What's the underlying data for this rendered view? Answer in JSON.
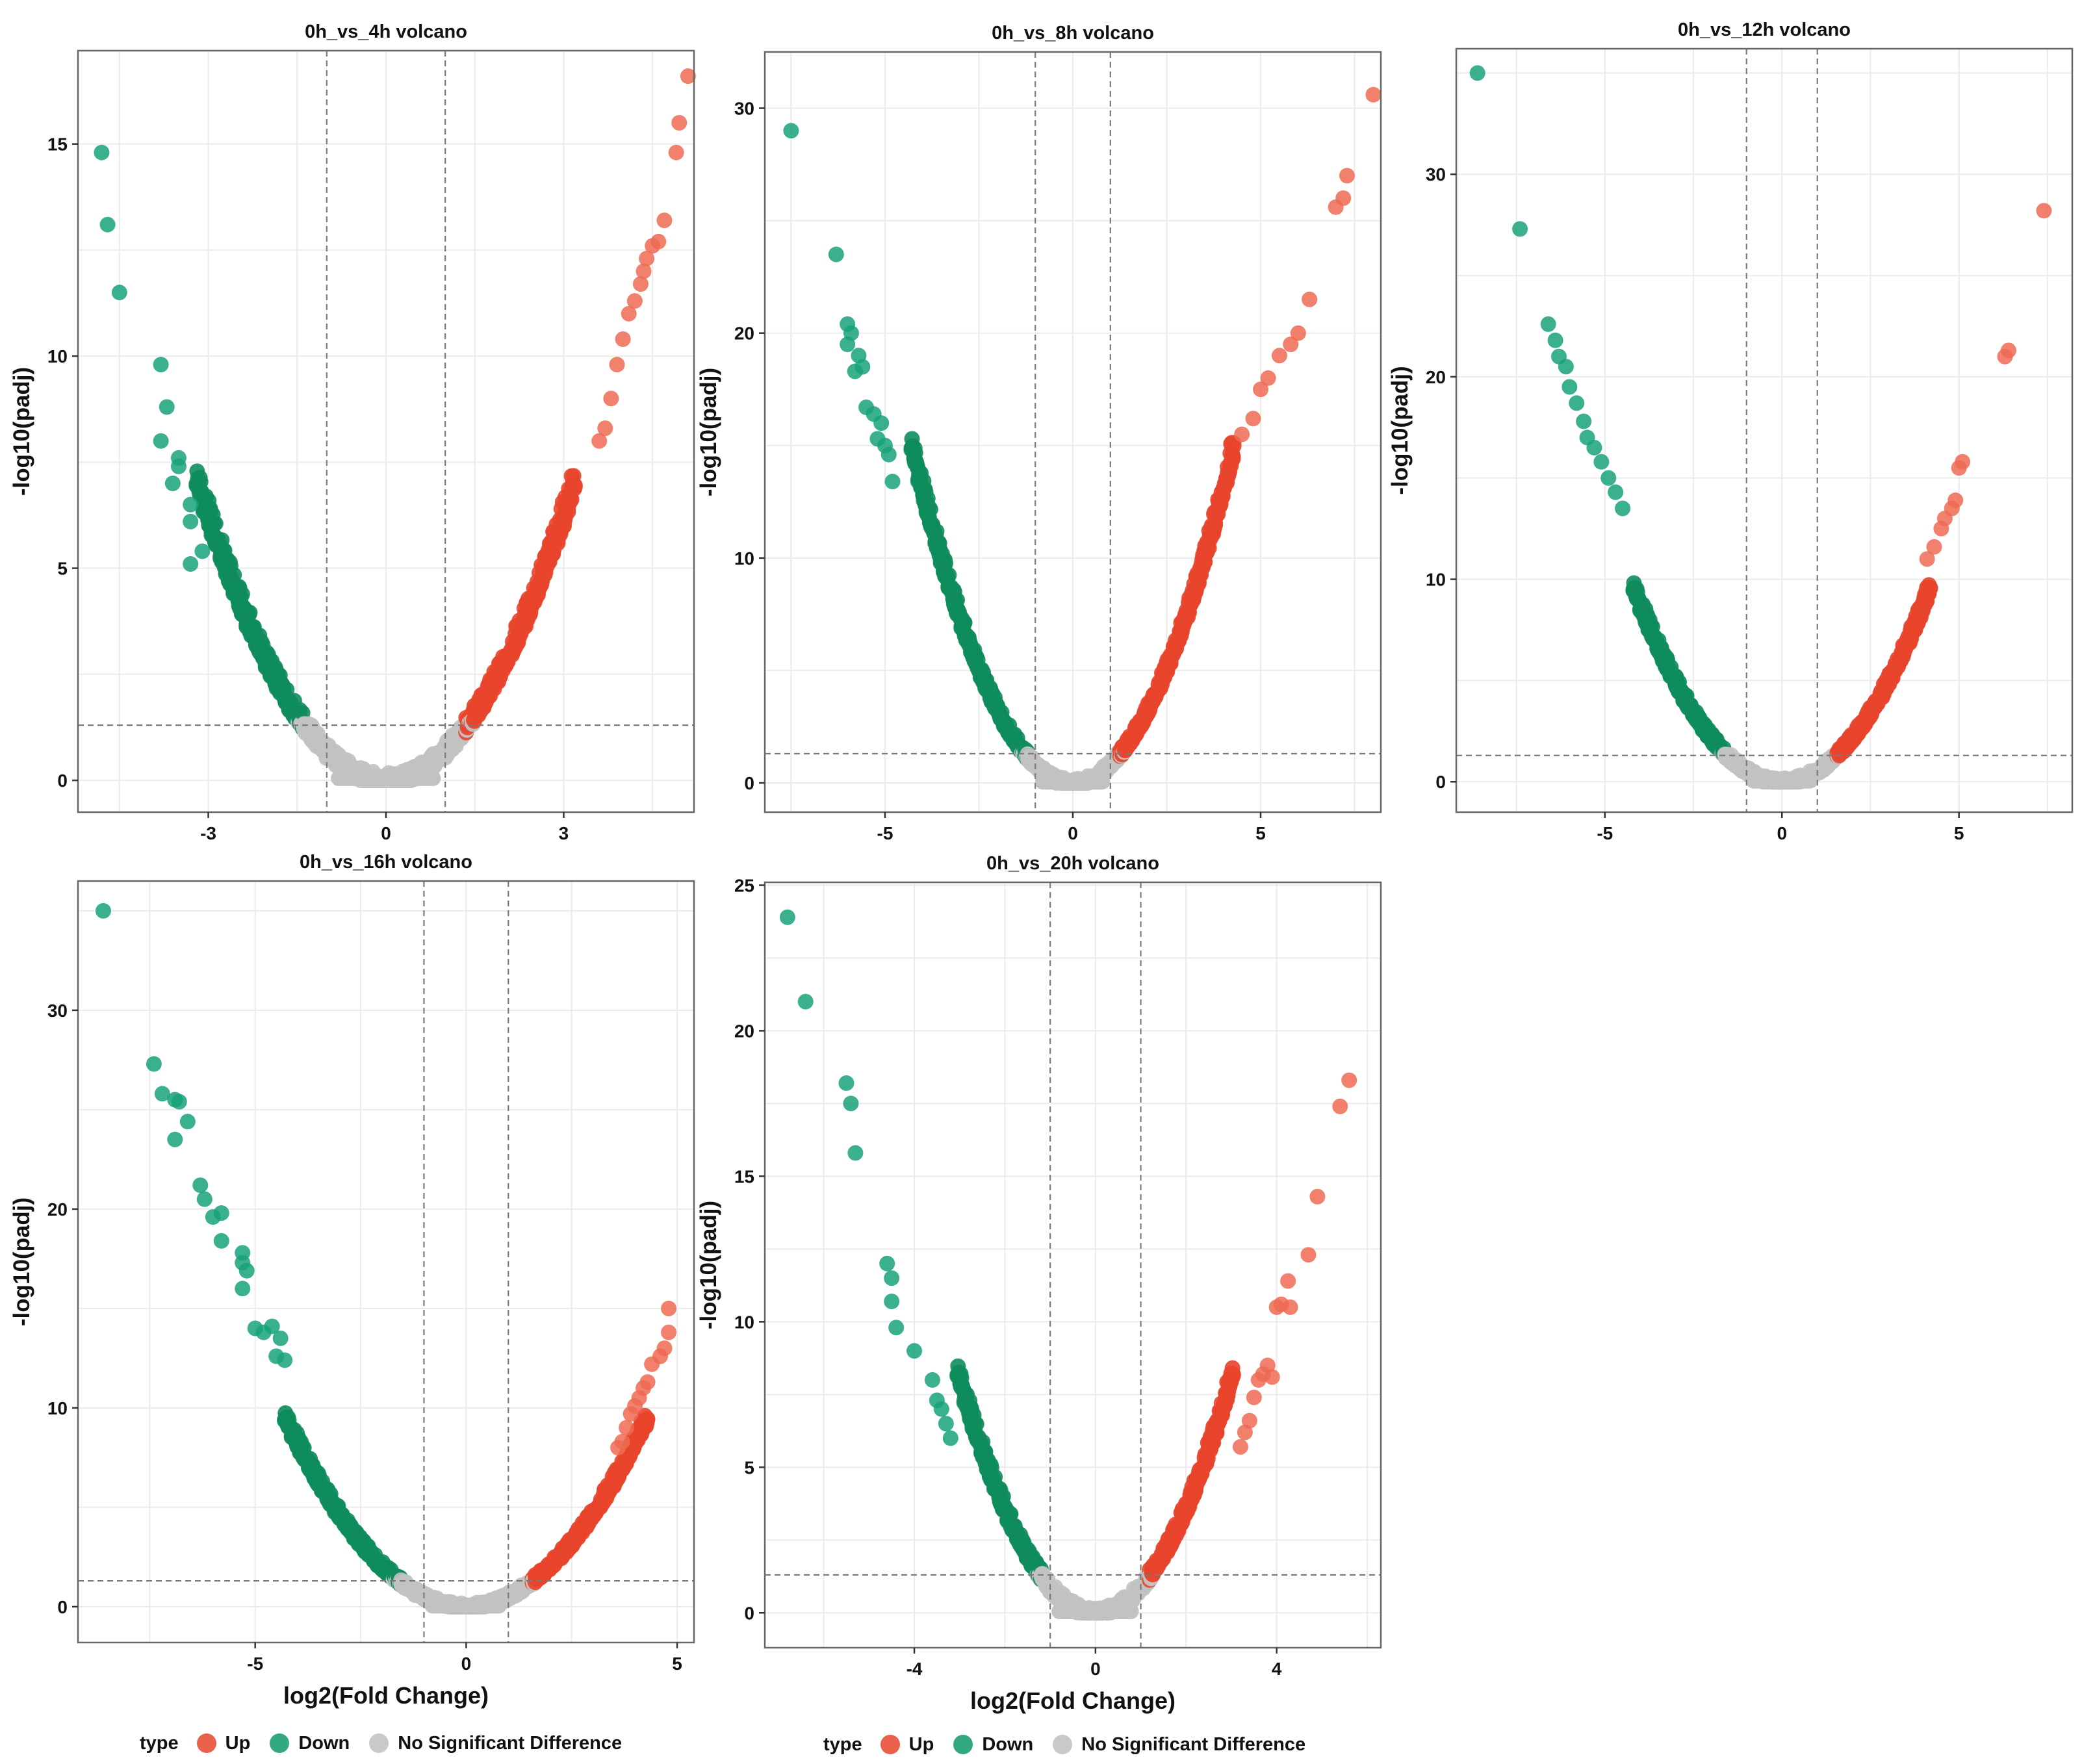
{
  "legend": {
    "title": "type",
    "items": [
      {
        "label": "Up",
        "color": "#E8452C"
      },
      {
        "label": "Down",
        "color": "#0F9A6A"
      },
      {
        "label": "No Significant Difference",
        "color": "#C0C0C0"
      }
    ]
  },
  "chart_data": [
    {
      "type": "scatter",
      "title": "0h_vs_4h volcano",
      "xlabel": "",
      "ylabel": "-log10(padj)",
      "xlim": [
        -5.2,
        5.2
      ],
      "ylim": [
        -0.75,
        17.2
      ],
      "xticks": [
        -3,
        0,
        3
      ],
      "yticks": [
        0,
        5,
        10,
        15
      ],
      "fc_threshold": 1,
      "padj_threshold_line": 1.3,
      "curve_k": 0.7,
      "grey_xmax": 1.65,
      "curve_xmax": 3.2,
      "up_points": [
        [
          3.6,
          8.0
        ],
        [
          3.7,
          8.3
        ],
        [
          3.8,
          9.0
        ],
        [
          3.9,
          9.8
        ],
        [
          4.0,
          10.4
        ],
        [
          4.1,
          11.0
        ],
        [
          4.2,
          11.3
        ],
        [
          4.3,
          11.7
        ],
        [
          4.35,
          12.0
        ],
        [
          4.4,
          12.3
        ],
        [
          4.5,
          12.6
        ],
        [
          4.6,
          12.7
        ],
        [
          4.7,
          13.2
        ],
        [
          4.9,
          14.8
        ],
        [
          4.95,
          15.5
        ],
        [
          5.1,
          16.6
        ]
      ],
      "down_points": [
        [
          -4.8,
          14.8
        ],
        [
          -4.7,
          13.1
        ],
        [
          -4.5,
          11.5
        ],
        [
          -3.8,
          9.8
        ],
        [
          -3.7,
          8.8
        ],
        [
          -3.8,
          8.0
        ],
        [
          -3.5,
          7.6
        ],
        [
          -3.5,
          7.4
        ],
        [
          -3.6,
          7.0
        ],
        [
          -3.3,
          6.5
        ],
        [
          -3.3,
          6.1
        ],
        [
          -3.3,
          5.1
        ],
        [
          -3.1,
          5.4
        ]
      ]
    },
    {
      "type": "scatter",
      "title": "0h_vs_8h volcano",
      "xlabel": "",
      "ylabel": "-log10(padj)",
      "xlim": [
        -8.2,
        8.2
      ],
      "ylim": [
        -1.3,
        32.5
      ],
      "xticks": [
        -5,
        0,
        5
      ],
      "yticks": [
        0,
        10,
        20,
        30
      ],
      "fc_threshold": 1,
      "padj_threshold_line": 1.3,
      "curve_k": 0.82,
      "grey_xmax": 1.6,
      "curve_xmax": 4.3,
      "up_points": [
        [
          4.5,
          15.5
        ],
        [
          4.8,
          16.2
        ],
        [
          5.0,
          17.5
        ],
        [
          5.2,
          18.0
        ],
        [
          5.5,
          19.0
        ],
        [
          5.8,
          19.5
        ],
        [
          6.0,
          20.0
        ],
        [
          6.3,
          21.5
        ],
        [
          7.0,
          25.6
        ],
        [
          7.2,
          26.0
        ],
        [
          7.3,
          27.0
        ],
        [
          8.0,
          30.6
        ]
      ],
      "down_points": [
        [
          -7.5,
          29.0
        ],
        [
          -6.3,
          23.5
        ],
        [
          -6.0,
          20.4
        ],
        [
          -5.9,
          20.0
        ],
        [
          -6.0,
          19.5
        ],
        [
          -5.7,
          19.0
        ],
        [
          -5.6,
          18.5
        ],
        [
          -5.8,
          18.3
        ],
        [
          -5.5,
          16.7
        ],
        [
          -5.3,
          16.4
        ],
        [
          -5.1,
          16.0
        ],
        [
          -5.2,
          15.3
        ],
        [
          -5.0,
          15.0
        ],
        [
          -4.9,
          14.6
        ],
        [
          -4.8,
          13.4
        ]
      ]
    },
    {
      "type": "scatter",
      "title": "0h_vs_12h volcano",
      "xlabel": "",
      "ylabel": "-log10(padj)",
      "xlim": [
        -9.2,
        8.2
      ],
      "ylim": [
        -1.5,
        36.2
      ],
      "xticks": [
        -5,
        0,
        5
      ],
      "yticks": [
        0,
        10,
        20,
        30
      ],
      "fc_threshold": 1,
      "padj_threshold_line": 1.3,
      "curve_k": 0.55,
      "grey_xmax": 1.8,
      "curve_xmax": 4.2,
      "up_points": [
        [
          4.1,
          11.0
        ],
        [
          4.3,
          11.6
        ],
        [
          4.5,
          12.5
        ],
        [
          4.6,
          13.0
        ],
        [
          4.8,
          13.5
        ],
        [
          4.9,
          13.9
        ],
        [
          5.0,
          15.5
        ],
        [
          5.1,
          15.8
        ],
        [
          6.3,
          21.0
        ],
        [
          6.4,
          21.3
        ],
        [
          7.4,
          28.2
        ]
      ],
      "down_points": [
        [
          -8.6,
          35.0
        ],
        [
          -7.4,
          27.3
        ],
        [
          -6.6,
          22.6
        ],
        [
          -6.4,
          21.8
        ],
        [
          -6.3,
          21.0
        ],
        [
          -6.1,
          20.5
        ],
        [
          -6.0,
          19.5
        ],
        [
          -5.8,
          18.7
        ],
        [
          -5.6,
          17.8
        ],
        [
          -5.5,
          17.0
        ],
        [
          -5.3,
          16.5
        ],
        [
          -5.1,
          15.8
        ],
        [
          -4.9,
          15.0
        ],
        [
          -4.7,
          14.3
        ],
        [
          -4.5,
          13.5
        ]
      ]
    },
    {
      "type": "scatter",
      "title": "0h_vs_16h volcano",
      "xlabel": "log2(Fold Change)",
      "ylabel": "-log10(padj)",
      "xlim": [
        -9.2,
        5.4
      ],
      "ylim": [
        -1.8,
        36.5
      ],
      "xticks": [
        -5,
        0,
        5
      ],
      "yticks": [
        0,
        10,
        20,
        30
      ],
      "fc_threshold": 1,
      "padj_threshold_line": 1.3,
      "curve_k": 0.52,
      "grey_xmax": 1.75,
      "curve_xmax": 4.3,
      "up_points": [
        [
          3.6,
          8.0
        ],
        [
          3.7,
          8.3
        ],
        [
          3.8,
          9.0
        ],
        [
          3.9,
          9.7
        ],
        [
          4.0,
          10.1
        ],
        [
          4.1,
          10.5
        ],
        [
          4.2,
          11.0
        ],
        [
          4.3,
          11.3
        ],
        [
          4.4,
          12.2
        ],
        [
          4.6,
          12.6
        ],
        [
          4.7,
          13.0
        ],
        [
          4.8,
          13.8
        ],
        [
          4.8,
          15.0
        ]
      ],
      "down_points": [
        [
          -8.6,
          35.0
        ],
        [
          -7.4,
          27.3
        ],
        [
          -7.2,
          25.8
        ],
        [
          -6.9,
          25.5
        ],
        [
          -6.8,
          25.4
        ],
        [
          -6.6,
          24.4
        ],
        [
          -6.9,
          23.5
        ],
        [
          -6.3,
          21.2
        ],
        [
          -6.2,
          20.5
        ],
        [
          -6.0,
          19.6
        ],
        [
          -5.8,
          19.8
        ],
        [
          -5.8,
          18.4
        ],
        [
          -5.3,
          17.8
        ],
        [
          -5.3,
          17.3
        ],
        [
          -5.2,
          16.9
        ],
        [
          -5.3,
          16.0
        ],
        [
          -5.0,
          14.0
        ],
        [
          -4.8,
          13.8
        ],
        [
          -4.6,
          14.1
        ],
        [
          -4.4,
          13.5
        ],
        [
          -4.5,
          12.6
        ],
        [
          -4.3,
          12.4
        ]
      ]
    },
    {
      "type": "scatter",
      "title": "0h_vs_20h volcano",
      "xlabel": "log2(Fold Change)",
      "ylabel": "-log10(padj)",
      "xlim": [
        -7.3,
        6.3
      ],
      "ylim": [
        -1.2,
        25.1
      ],
      "xticks": [
        -4,
        0,
        4
      ],
      "yticks": [
        0,
        5,
        10,
        15,
        20,
        25
      ],
      "fc_threshold": 1,
      "padj_threshold_line": 1.3,
      "curve_k": 0.9,
      "grey_xmax": 1.9,
      "curve_xmax": 3.05,
      "up_points": [
        [
          3.2,
          5.7
        ],
        [
          3.3,
          6.2
        ],
        [
          3.4,
          6.6
        ],
        [
          3.5,
          7.4
        ],
        [
          3.6,
          8.0
        ],
        [
          3.7,
          8.2
        ],
        [
          3.8,
          8.5
        ],
        [
          3.9,
          8.1
        ],
        [
          4.0,
          10.5
        ],
        [
          4.1,
          10.6
        ],
        [
          4.3,
          10.5
        ],
        [
          4.25,
          11.4
        ],
        [
          4.7,
          12.3
        ],
        [
          4.9,
          14.3
        ],
        [
          5.4,
          17.4
        ],
        [
          5.6,
          18.3
        ]
      ],
      "down_points": [
        [
          -6.8,
          23.9
        ],
        [
          -6.4,
          21.0
        ],
        [
          -5.5,
          18.2
        ],
        [
          -5.4,
          17.5
        ],
        [
          -5.3,
          15.8
        ],
        [
          -4.6,
          12.0
        ],
        [
          -4.5,
          11.5
        ],
        [
          -4.5,
          10.7
        ],
        [
          -4.4,
          9.8
        ],
        [
          -4.0,
          9.0
        ],
        [
          -3.6,
          8.0
        ],
        [
          -3.5,
          7.3
        ],
        [
          -3.4,
          7.0
        ],
        [
          -3.3,
          6.5
        ],
        [
          -3.2,
          6.0
        ]
      ]
    }
  ]
}
